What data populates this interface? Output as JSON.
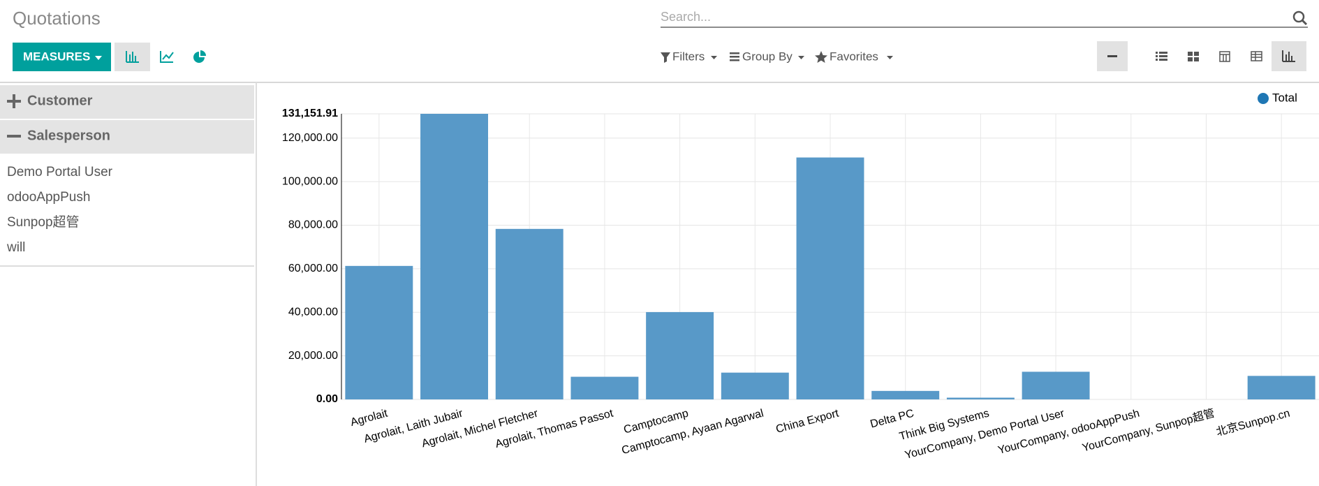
{
  "header": {
    "title": "Quotations",
    "search_placeholder": "Search...",
    "measures": "MEASURES",
    "filters": "Filters",
    "group_by": "Group By",
    "favorites": "Favorites"
  },
  "sidebar": {
    "groups": [
      "Customer",
      "Salesperson"
    ],
    "items": [
      "Demo Portal User",
      "odooAppPush",
      "Sunpop超管",
      "will"
    ]
  },
  "chart_data": {
    "type": "bar",
    "categories": [
      "Agrolait",
      "Agrolait, Laith Jubair",
      "Agrolait, Michel Fletcher",
      "Agrolait, Thomas Passot",
      "Camptocamp",
      "Camptocamp, Ayaan Agarwal",
      "China Export",
      "Delta PC",
      "Think Big Systems",
      "YourCompany, Demo Portal User",
      "YourCompany, odooAppPush",
      "YourCompany, Sunpop超管",
      "北京Sunpop.cn"
    ],
    "series": [
      {
        "name": "Total",
        "color": "#5899c8",
        "values": [
          61300,
          131151.91,
          78300,
          10400,
          40100,
          12300,
          111100,
          3900,
          800,
          12700,
          0,
          0,
          10800
        ]
      }
    ],
    "ylim": [
      0,
      131151.91
    ],
    "yticks": [
      {
        "value": 0,
        "label": "0.00"
      },
      {
        "value": 20000,
        "label": "20,000.00"
      },
      {
        "value": 40000,
        "label": "40,000.00"
      },
      {
        "value": 60000,
        "label": "60,000.00"
      },
      {
        "value": 80000,
        "label": "80,000.00"
      },
      {
        "value": 100000,
        "label": "100,000.00"
      },
      {
        "value": 120000,
        "label": "120,000.00"
      },
      {
        "value": 131151.91,
        "label": "131,151.91"
      }
    ],
    "grid": true,
    "legend": "top-right"
  }
}
